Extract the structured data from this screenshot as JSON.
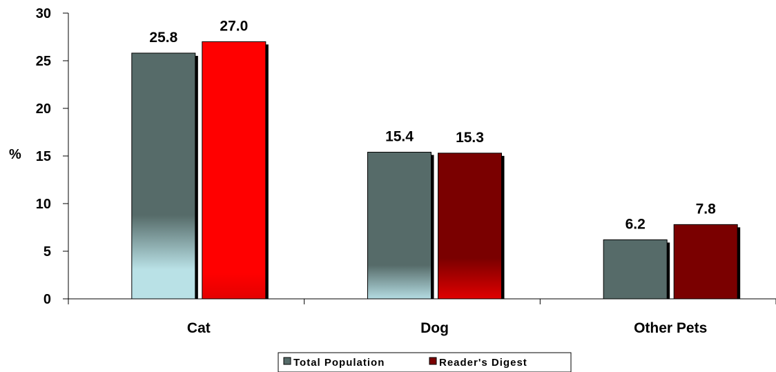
{
  "chart_data": {
    "type": "bar",
    "ylabel": "%",
    "xlabel": "",
    "title": "",
    "ylim": [
      0,
      30
    ],
    "yticks": [
      0,
      5,
      10,
      15,
      20,
      25,
      30
    ],
    "categories": [
      "Cat",
      "Dog",
      "Other Pets"
    ],
    "series": [
      {
        "name": "Total Population",
        "values": [
          25.8,
          15.4,
          6.2
        ]
      },
      {
        "name": "Reader's Digest",
        "values": [
          27.0,
          15.3,
          7.8
        ]
      }
    ],
    "data_labels": [
      [
        "25.8",
        "15.4",
        "6.2"
      ],
      [
        "27.0",
        "15.3",
        "7.8"
      ]
    ],
    "legend": {
      "position": "bottom"
    },
    "grid": false,
    "colors": {
      "total_population": "#566b69",
      "total_population_light": "#b9e1e6",
      "readers_digest": "#7a0000",
      "readers_digest_cat": "#ff0000",
      "shadow": "#000000"
    }
  }
}
